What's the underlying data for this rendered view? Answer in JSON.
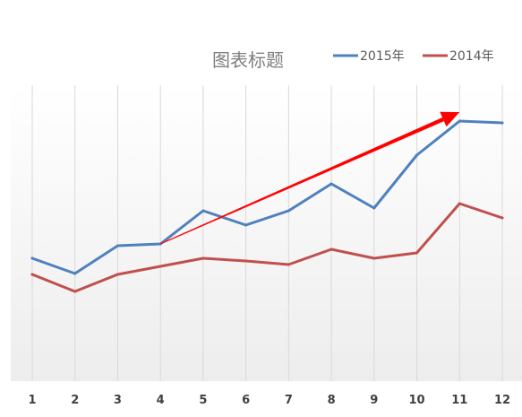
{
  "chart_data": {
    "type": "line",
    "title": "图表标题",
    "xlabel": "",
    "ylabel": "",
    "categories": [
      "1",
      "2",
      "3",
      "4",
      "5",
      "6",
      "7",
      "8",
      "9",
      "10",
      "11",
      "12"
    ],
    "ylim": [
      0,
      33
    ],
    "series": [
      {
        "name": "2015年",
        "color": "#4f81bd",
        "values": [
          13.7,
          12.0,
          15.1,
          15.3,
          19.0,
          17.4,
          19.0,
          22.0,
          19.3,
          25.2,
          29.0,
          28.8
        ]
      },
      {
        "name": "2014年",
        "color": "#c0504d",
        "values": [
          11.9,
          10.0,
          11.9,
          12.8,
          13.7,
          13.4,
          13.0,
          14.7,
          13.7,
          14.3,
          19.8,
          18.2
        ]
      }
    ],
    "grid": "vertical",
    "legend_position": "top-right",
    "annotation": {
      "type": "arrow",
      "color": "#ff0000",
      "from_x": "4",
      "from_y": 15.3,
      "to_x": "11",
      "to_y": 30.0
    }
  }
}
